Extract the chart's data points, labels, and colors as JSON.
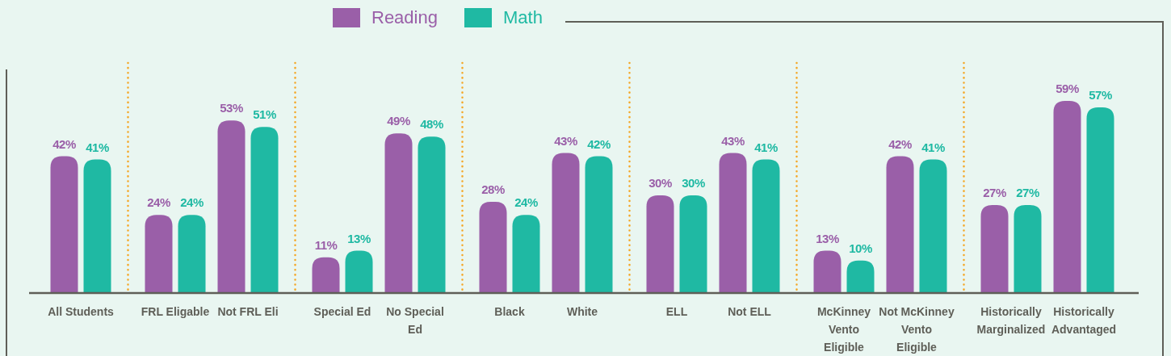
{
  "chart_data": {
    "type": "bar",
    "categories": [
      "All Students",
      "FRL Eligable",
      "Not FRL Eli",
      "Special Ed",
      "No Special Ed",
      "Black",
      "White",
      "ELL",
      "Not ELL",
      "McKinney Vento Eligible",
      "Not McKinney Vento Eligible",
      "Historically Marginalized",
      "Historically Advantaged"
    ],
    "series": [
      {
        "name": "Reading",
        "color": "#9a5fa8",
        "values": [
          42,
          24,
          53,
          11,
          49,
          28,
          43,
          30,
          43,
          13,
          42,
          27,
          59
        ],
        "value_labels": [
          "42%",
          "24%",
          "53%",
          "11%",
          "49%",
          "28%",
          "43%",
          "30%",
          "43%",
          "13%",
          "42%",
          "27%",
          "59%"
        ]
      },
      {
        "name": "Math",
        "color": "#1fb9a3",
        "values": [
          41,
          24,
          51,
          13,
          48,
          24,
          42,
          30,
          41,
          10,
          41,
          27,
          57
        ],
        "value_labels": [
          "41%",
          "24%",
          "51%",
          "13%",
          "48%",
          "24%",
          "42%",
          "30%",
          "41%",
          "10%",
          "41%",
          "27%",
          "57%"
        ]
      }
    ],
    "legend": "top"
  }
}
